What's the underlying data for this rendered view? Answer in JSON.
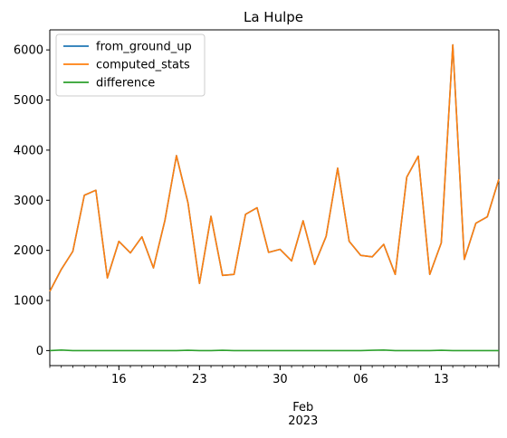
{
  "chart_data": {
    "type": "line",
    "title": "La Hulpe",
    "xlabel": "",
    "ylabel": "",
    "ylim": [
      -300,
      6400
    ],
    "x_start_label": "2023-01-10",
    "x": [
      "2023-01-10",
      "2023-01-11",
      "2023-01-12",
      "2023-01-13",
      "2023-01-14",
      "2023-01-15",
      "2023-01-16",
      "2023-01-17",
      "2023-01-18",
      "2023-01-19",
      "2023-01-20",
      "2023-01-21",
      "2023-01-22",
      "2023-01-23",
      "2023-01-24",
      "2023-01-25",
      "2023-01-26",
      "2023-01-27",
      "2023-01-28",
      "2023-01-29",
      "2023-01-30",
      "2023-01-31",
      "2023-02-01",
      "2023-02-02",
      "2023-02-03",
      "2023-02-04",
      "2023-02-05",
      "2023-02-06",
      "2023-02-07",
      "2023-02-08",
      "2023-02-09",
      "2023-02-10",
      "2023-02-11",
      "2023-02-12",
      "2023-02-13",
      "2023-02-14",
      "2023-02-15",
      "2023-02-16",
      "2023-02-17",
      "2023-02-18"
    ],
    "x_tick_labels": [
      "16",
      "23",
      "30",
      "06",
      "13"
    ],
    "x_minor_label": "Feb\n2023",
    "y_ticks": [
      0,
      1000,
      2000,
      3000,
      4000,
      5000,
      6000
    ],
    "legend_position": "top-left",
    "series": [
      {
        "name": "from_ground_up",
        "color": "#1f77b4",
        "values": [
          1180,
          1620,
          1980,
          3100,
          3200,
          1450,
          2180,
          1950,
          2270,
          1650,
          2600,
          3890,
          2950,
          1340,
          2680,
          1500,
          1520,
          2720,
          2850,
          1960,
          2020,
          1790,
          2590,
          1720,
          2280,
          3640,
          2180,
          1900,
          1870,
          2120,
          1520,
          3460,
          3880,
          1520,
          2150,
          6100,
          1820,
          2540,
          2670,
          3420
        ]
      },
      {
        "name": "computed_stats",
        "color": "#ff7f0e",
        "values": [
          1180,
          1620,
          1980,
          3100,
          3200,
          1450,
          2180,
          1950,
          2270,
          1650,
          2600,
          3890,
          2950,
          1340,
          2680,
          1500,
          1520,
          2720,
          2850,
          1960,
          2020,
          1790,
          2590,
          1720,
          2280,
          3640,
          2180,
          1900,
          1870,
          2120,
          1520,
          3460,
          3880,
          1520,
          2150,
          6100,
          1820,
          2540,
          2670,
          3420
        ]
      },
      {
        "name": "difference",
        "color": "#2ca02c",
        "values": [
          0,
          10,
          0,
          0,
          0,
          0,
          0,
          0,
          0,
          0,
          0,
          0,
          5,
          0,
          0,
          5,
          0,
          0,
          0,
          0,
          0,
          0,
          0,
          0,
          0,
          0,
          0,
          0,
          5,
          10,
          0,
          0,
          0,
          0,
          5,
          0,
          0,
          0,
          0,
          0
        ]
      }
    ]
  }
}
